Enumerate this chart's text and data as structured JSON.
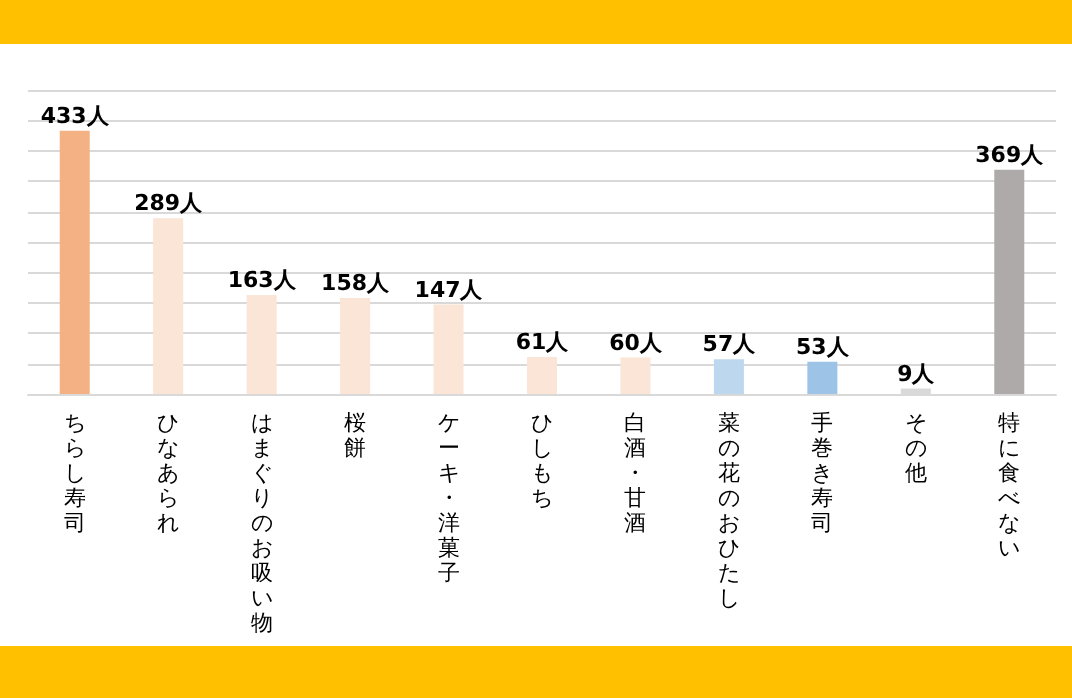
{
  "chart_data": {
    "type": "bar",
    "categories": [
      "ちらし寿司",
      "ひなあられ",
      "はまぐりのお吸い物",
      "桜餅",
      "ケーキ・洋菓子",
      "ひしもち",
      "白酒・甘酒",
      "菜の花のおひたし",
      "手巻き寿司",
      "その他",
      "特に食べない"
    ],
    "values": [
      433,
      289,
      163,
      158,
      147,
      61,
      60,
      57,
      53,
      9,
      369
    ],
    "value_labels": [
      "433人",
      "289人",
      "163人",
      "158人",
      "147人",
      "61人",
      "60人",
      "57人",
      "53人",
      "9人",
      "369人"
    ],
    "colors": [
      "#f4b183",
      "#fbe5d6",
      "#fbe5d6",
      "#fbe5d6",
      "#fbe5d6",
      "#fbe5d6",
      "#fbe5d6",
      "#bdd7ee",
      "#9dc3e6",
      "#d9d9d9",
      "#aeaaaa"
    ],
    "ylim": [
      0,
      500
    ],
    "yticks": [
      0,
      50,
      100,
      150,
      200,
      250,
      300,
      350,
      400,
      450,
      500
    ],
    "grid": "y",
    "tick_labels": "x"
  }
}
